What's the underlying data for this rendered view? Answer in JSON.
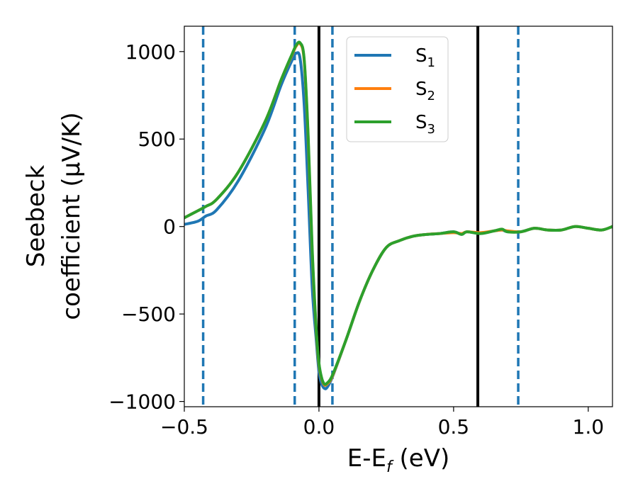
{
  "chart_data": {
    "type": "line",
    "xlabel": "E-E",
    "xlabel_sub": "f",
    "xlabel_unit": " (eV)",
    "ylabel_line1": "Seebeck",
    "ylabel_line2": "coefficient  (μV/K)",
    "xlim": [
      -0.5,
      1.09
    ],
    "ylim": [
      -1030,
      1145
    ],
    "xticks": [
      -0.5,
      0.0,
      0.5,
      1.0
    ],
    "xtick_labels": [
      "−0.5",
      "0.0",
      "0.5",
      "1.0"
    ],
    "yticks": [
      -1000,
      -500,
      0,
      500,
      1000
    ],
    "ytick_labels": [
      "−1000",
      "−500",
      "0",
      "500",
      "1000"
    ],
    "grid": false,
    "legend_position": "top-center",
    "series": [
      {
        "name": "S",
        "sub": "1",
        "color": "#1f77b4",
        "x": [
          -0.5,
          -0.45,
          -0.42,
          -0.38,
          -0.3,
          -0.2,
          -0.14,
          -0.1,
          -0.085,
          -0.07,
          -0.055,
          -0.04,
          -0.025,
          -0.01,
          0.0,
          0.01,
          0.02,
          0.03,
          0.05,
          0.1,
          0.15,
          0.2,
          0.25,
          0.3,
          0.35,
          0.4,
          0.45,
          0.5,
          0.53,
          0.55,
          0.6,
          0.65,
          0.68,
          0.7,
          0.75,
          0.8,
          0.85,
          0.9,
          0.95,
          1.0,
          1.05,
          1.09
        ],
        "values": [
          12,
          30,
          60,
          95,
          260,
          560,
          810,
          950,
          990,
          960,
          700,
          200,
          -350,
          -650,
          -830,
          -900,
          -925,
          -920,
          -860,
          -650,
          -430,
          -250,
          -120,
          -80,
          -55,
          -45,
          -40,
          -30,
          -45,
          -30,
          -40,
          -25,
          -20,
          -30,
          -30,
          -10,
          -20,
          -20,
          0,
          -10,
          -20,
          0
        ]
      },
      {
        "name": "S",
        "sub": "2",
        "color": "#ff7f0e",
        "x": [
          -0.5,
          -0.45,
          -0.42,
          -0.38,
          -0.3,
          -0.2,
          -0.14,
          -0.1,
          -0.085,
          -0.07,
          -0.055,
          -0.04,
          -0.025,
          -0.01,
          0.0,
          0.01,
          0.02,
          0.03,
          0.05,
          0.1,
          0.15,
          0.2,
          0.25,
          0.3,
          0.35,
          0.4,
          0.45,
          0.5,
          0.53,
          0.55,
          0.6,
          0.65,
          0.68,
          0.7,
          0.75,
          0.8,
          0.85,
          0.9,
          0.95,
          1.0,
          1.05,
          1.09
        ],
        "values": [
          50,
          90,
          115,
          155,
          310,
          600,
          840,
          980,
          1030,
          1045,
          950,
          500,
          -150,
          -600,
          -790,
          -870,
          -905,
          -900,
          -855,
          -650,
          -430,
          -250,
          -120,
          -80,
          -55,
          -45,
          -40,
          -35,
          -40,
          -30,
          -35,
          -25,
          -20,
          -25,
          -30,
          -10,
          -20,
          -20,
          0,
          -10,
          -20,
          0
        ]
      },
      {
        "name": "S",
        "sub": "3",
        "color": "#2ca02c",
        "x": [
          -0.5,
          -0.45,
          -0.42,
          -0.38,
          -0.3,
          -0.2,
          -0.14,
          -0.1,
          -0.085,
          -0.07,
          -0.055,
          -0.04,
          -0.025,
          -0.01,
          0.0,
          0.01,
          0.02,
          0.03,
          0.05,
          0.1,
          0.15,
          0.2,
          0.25,
          0.3,
          0.35,
          0.4,
          0.45,
          0.5,
          0.53,
          0.55,
          0.6,
          0.65,
          0.68,
          0.7,
          0.75,
          0.8,
          0.85,
          0.9,
          0.95,
          1.0,
          1.05,
          1.09
        ],
        "values": [
          50,
          90,
          115,
          155,
          310,
          600,
          840,
          985,
          1035,
          1050,
          960,
          520,
          -130,
          -590,
          -780,
          -865,
          -900,
          -895,
          -850,
          -650,
          -430,
          -250,
          -120,
          -80,
          -55,
          -45,
          -40,
          -30,
          -45,
          -30,
          -40,
          -25,
          -15,
          -30,
          -30,
          -10,
          -20,
          -20,
          0,
          -10,
          -20,
          0
        ]
      }
    ],
    "vlines": [
      {
        "x": -0.43,
        "color": "#1f77b4",
        "style": "dashed"
      },
      {
        "x": -0.09,
        "color": "#1f77b4",
        "style": "dashed"
      },
      {
        "x": 0.05,
        "color": "#1f77b4",
        "style": "dashed"
      },
      {
        "x": 0.74,
        "color": "#1f77b4",
        "style": "dashed"
      },
      {
        "x": 0.0,
        "color": "#000000",
        "style": "solid"
      },
      {
        "x": 0.59,
        "color": "#000000",
        "style": "solid"
      }
    ]
  }
}
